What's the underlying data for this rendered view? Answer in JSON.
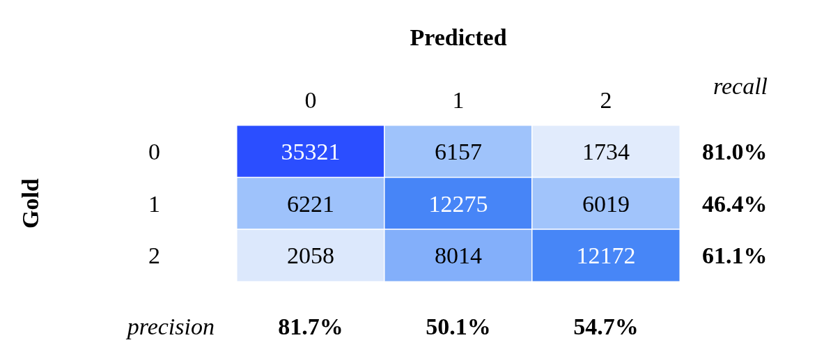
{
  "chart_data": {
    "type": "heatmap",
    "xlabel": "Predicted",
    "ylabel": "Gold",
    "y2label": "recall",
    "categories": [
      "0",
      "1",
      "2"
    ],
    "y_categories": [
      "0",
      "1",
      "2"
    ],
    "y2_categories": [
      "81.0%",
      "46.4%",
      "61.1%"
    ],
    "cells": [
      [
        35321,
        6157,
        1734
      ],
      [
        6221,
        12275,
        6019
      ],
      [
        2058,
        8014,
        12172
      ]
    ],
    "data_labels": true,
    "annotations": [
      "precision",
      "81.7%",
      "50.1%",
      "54.7%"
    ]
  }
}
